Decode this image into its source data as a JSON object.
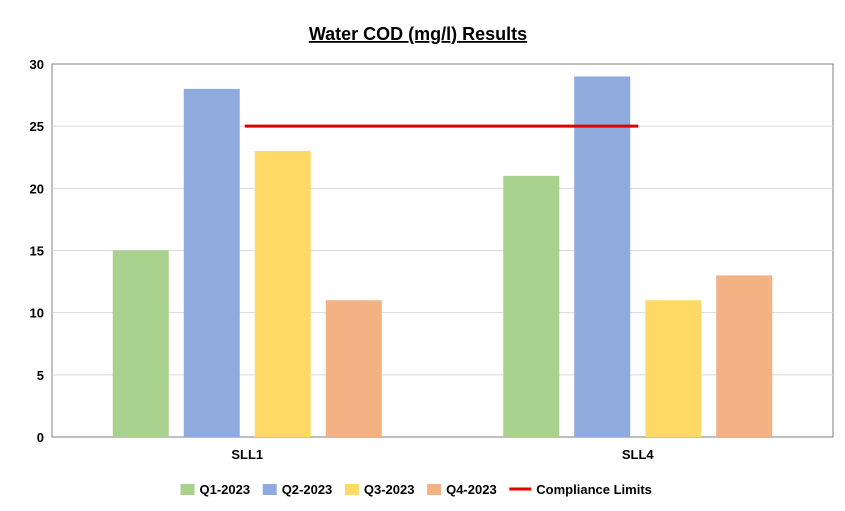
{
  "chart_data": {
    "type": "bar",
    "title": "Water COD (mg/l) Results",
    "xlabel": "",
    "ylabel": "",
    "categories": [
      "SLL1",
      "SLL4"
    ],
    "series": [
      {
        "name": "Q1-2023",
        "values": [
          15,
          21
        ],
        "color": "#a9d18e"
      },
      {
        "name": "Q2-2023",
        "values": [
          28,
          29
        ],
        "color": "#8faadc"
      },
      {
        "name": "Q3-2023",
        "values": [
          23,
          11
        ],
        "color": "#ffd966"
      },
      {
        "name": "Q4-2023",
        "values": [
          11,
          13
        ],
        "color": "#f4b183"
      }
    ],
    "compliance_limit": {
      "name": "Compliance Limits",
      "value": 25,
      "color": "#e00000"
    },
    "ylim": [
      0,
      30
    ],
    "yticks": [
      0,
      5,
      10,
      15,
      20,
      25,
      30
    ],
    "grid": true,
    "legend_position": "bottom"
  }
}
